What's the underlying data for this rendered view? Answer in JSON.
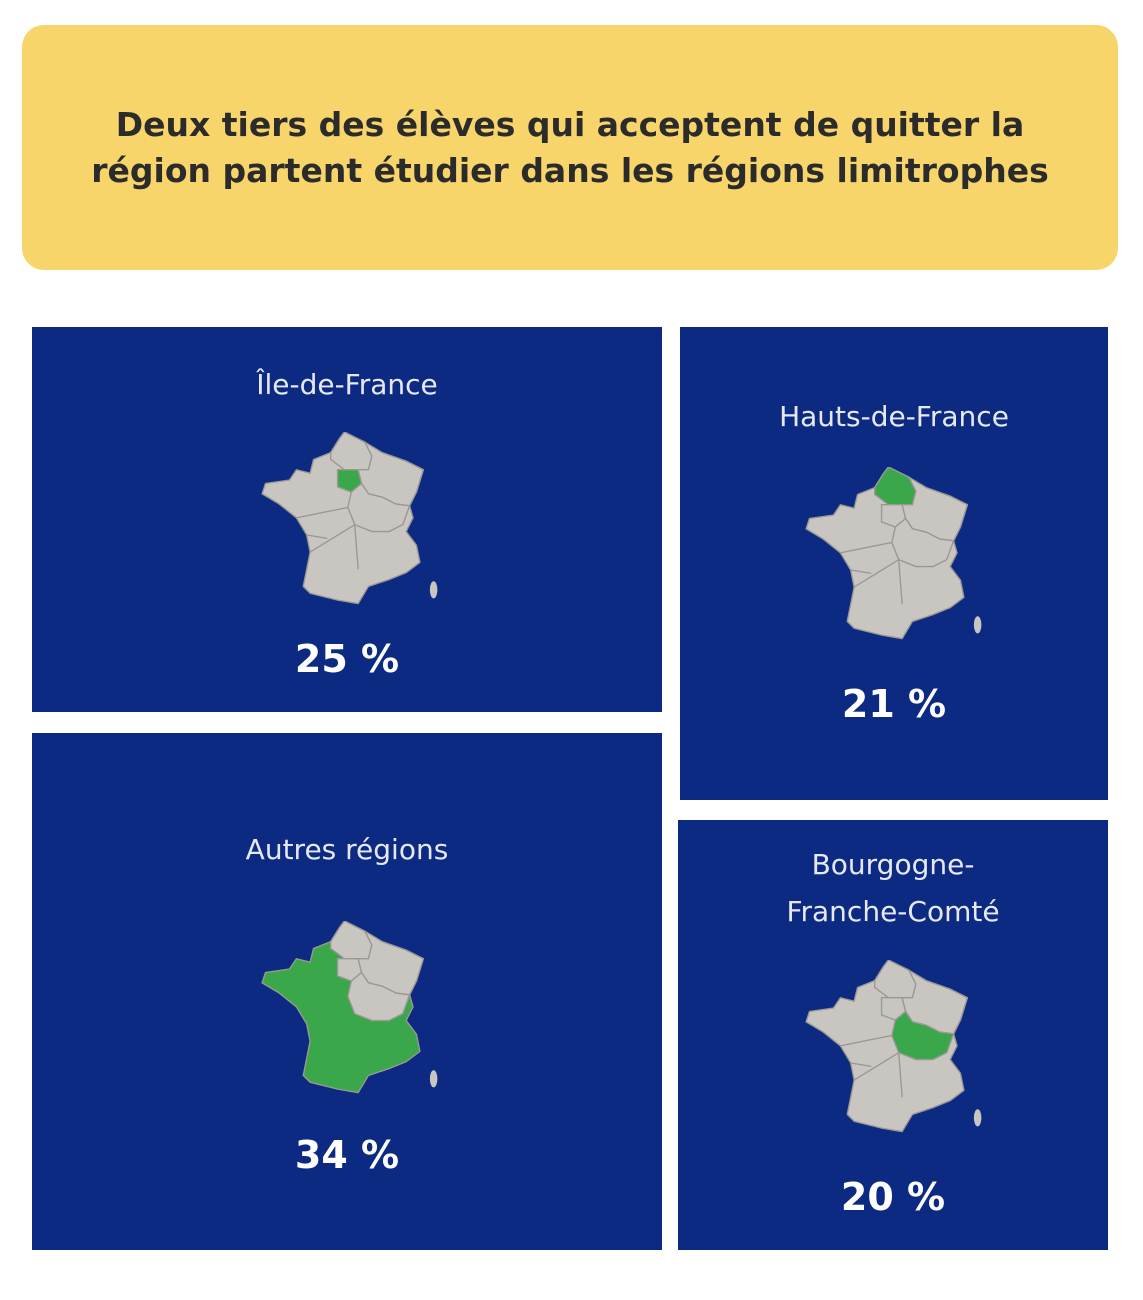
{
  "title": "Deux tiers des élèves qui acceptent de quitter la région partent étudier dans les régions limitrophes",
  "colors": {
    "banner": "#f7d56a",
    "panel": "#0c2a82",
    "highlight": "#3aa84a",
    "map": "#c9c6c2"
  },
  "chart_data": {
    "type": "table",
    "title": "Deux tiers des élèves qui acceptent de quitter la région partent étudier dans les régions limitrophes",
    "categories": [
      "Île-de-France",
      "Hauts-de-France",
      "Autres régions",
      "Bourgogne-Franche-Comté"
    ],
    "values": [
      25,
      21,
      34,
      20
    ],
    "unit": "%"
  },
  "panels": [
    {
      "label": "Île-de-France",
      "value": "25 %",
      "highlight": "ile-de-france"
    },
    {
      "label": "Hauts-de-France",
      "value": "21 %",
      "highlight": "hauts-de-france"
    },
    {
      "label": "Autres régions",
      "value": "34 %",
      "highlight": "autres-regions"
    },
    {
      "label": "Bourgogne-Franche-Comté",
      "label_line1": "Bourgogne-",
      "label_line2": "Franche-Comté",
      "value": "20 %",
      "highlight": "bourgogne-franche-comte"
    }
  ]
}
